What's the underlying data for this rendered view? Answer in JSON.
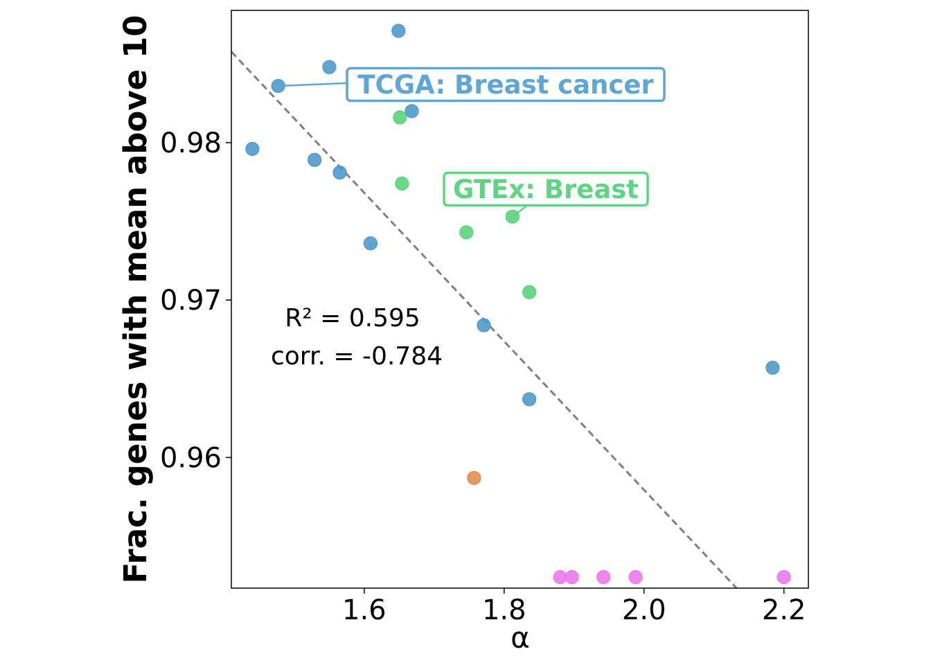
{
  "chart_data": {
    "type": "scatter",
    "xlabel": "α",
    "ylabel": "Frac. genes with mean above 10",
    "xlim": [
      1.41,
      2.235
    ],
    "ylim": [
      0.9517,
      0.9884
    ],
    "x_ticks": [
      1.6,
      1.8,
      2.0,
      2.2
    ],
    "x_tick_labels": [
      "1.6",
      "1.8",
      "2.0",
      "2.2"
    ],
    "y_ticks": [
      0.96,
      0.97,
      0.98
    ],
    "y_tick_labels": [
      "0.96",
      "0.97",
      "0.98"
    ],
    "grid": false,
    "series": [
      {
        "color": "#4b97c9",
        "points": [
          {
            "x": 1.44,
            "y": 0.9796
          },
          {
            "x": 1.477,
            "y": 0.9836
          },
          {
            "x": 1.529,
            "y": 0.9789
          },
          {
            "x": 1.55,
            "y": 0.9848
          },
          {
            "x": 1.565,
            "y": 0.9781
          },
          {
            "x": 1.609,
            "y": 0.9736
          },
          {
            "x": 1.649,
            "y": 0.9871
          },
          {
            "x": 1.668,
            "y": 0.982
          },
          {
            "x": 1.771,
            "y": 0.9684
          },
          {
            "x": 1.836,
            "y": 0.9637
          },
          {
            "x": 2.184,
            "y": 0.9657
          }
        ]
      },
      {
        "color": "#55d27a",
        "points": [
          {
            "x": 1.651,
            "y": 0.9816
          },
          {
            "x": 1.654,
            "y": 0.9774
          },
          {
            "x": 1.746,
            "y": 0.9743
          },
          {
            "x": 1.812,
            "y": 0.9753
          },
          {
            "x": 1.836,
            "y": 0.9705
          }
        ]
      },
      {
        "color": "#e08a4c",
        "points": [
          {
            "x": 1.757,
            "y": 0.9587
          }
        ]
      },
      {
        "color": "#ea76ea",
        "points": [
          {
            "x": 1.88,
            "y": 0.9524
          },
          {
            "x": 1.897,
            "y": 0.9524
          },
          {
            "x": 1.942,
            "y": 0.9524
          },
          {
            "x": 1.988,
            "y": 0.9524
          },
          {
            "x": 2.2,
            "y": 0.9524
          }
        ]
      }
    ],
    "fit_line": {
      "slope": -0.04718,
      "intercept": 1.0523,
      "color": "#808080",
      "style": "dashed"
    },
    "stats": {
      "r2_text": "R² = 0.595",
      "corr_text": "corr. = -0.784"
    },
    "annotations": [
      {
        "text": "TCGA: Breast cancer",
        "color": "#5fa6d2",
        "point": {
          "x": 1.477,
          "y": 0.9836
        }
      },
      {
        "text": "GTEx: Breast",
        "color": "#5fd584",
        "point": {
          "x": 1.812,
          "y": 0.9753
        }
      }
    ]
  }
}
